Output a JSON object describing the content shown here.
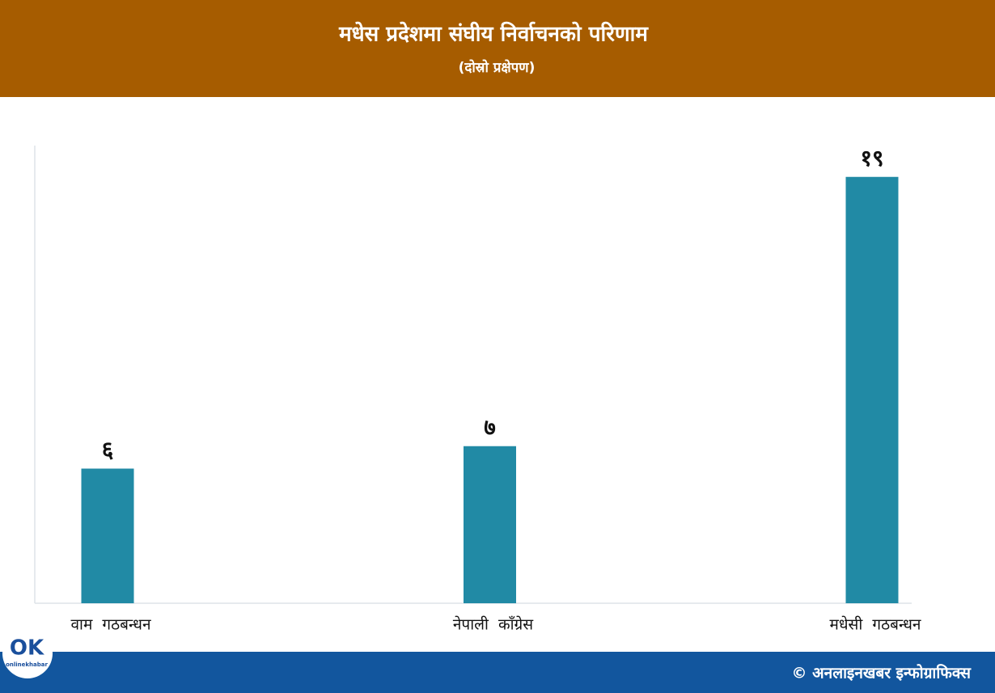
{
  "chart_data": {
    "type": "bar",
    "title": "मधेस प्रदेशमा संघीय निर्वाचनको परिणाम",
    "subtitle": "(दोस्रो प्रक्षेपण)",
    "categories": [
      "वाम  गठबन्धन",
      "नेपाली  काँग्रेस",
      "मधेसी  गठबन्धन"
    ],
    "values": [
      6,
      7,
      19
    ],
    "value_labels": [
      "६",
      "७",
      "१९"
    ],
    "color": "#218aa5",
    "ylim": [
      0,
      20
    ]
  },
  "footer": {
    "credit": "© अनलाइनखबर इन्फोग्राफिक्स",
    "logo_mark": "OK",
    "logo_name": "onlinekhabar"
  }
}
